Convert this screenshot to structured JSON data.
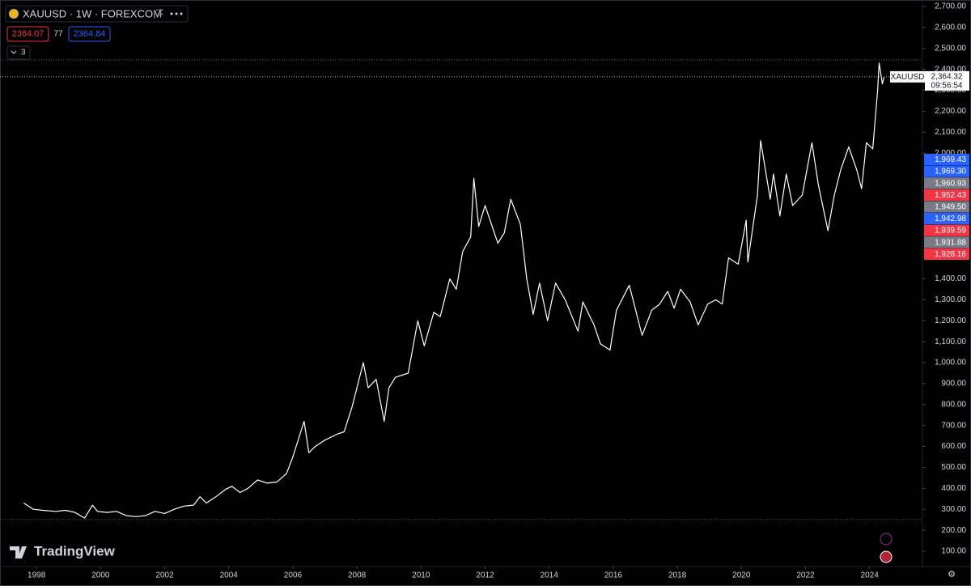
{
  "header": {
    "symbol_line": "XAUUSD · 1W · FOREXCOM",
    "bid": "2364.07",
    "spread": "77",
    "ask": "2364.84",
    "indicators": "3"
  },
  "brand": "TradingView",
  "countdown": "09:56:54",
  "price_tags": [
    {
      "label": "1,969.43",
      "color": "#2962ff"
    },
    {
      "label": "1,969.30",
      "color": "#2962ff"
    },
    {
      "label": "1,960.93",
      "color": "#787b86"
    },
    {
      "label": "1,952.43",
      "color": "#f23645"
    },
    {
      "label": "1,949.50",
      "color": "#787b86"
    },
    {
      "label": "1,942.98",
      "color": "#2962ff"
    },
    {
      "label": "1,939.59",
      "color": "#f23645"
    },
    {
      "label": "1,931.88",
      "color": "#787b86"
    },
    {
      "label": "1,928.16",
      "color": "#f23645"
    }
  ],
  "chart_data": {
    "type": "line",
    "grid": false,
    "xlim": [
      1996.86,
      2025.65
    ],
    "xticks": [
      1998,
      2000,
      2002,
      2004,
      2006,
      2008,
      2010,
      2012,
      2014,
      2016,
      2018,
      2020,
      2022,
      2024
    ],
    "ylim": [
      100,
      2700
    ],
    "yticks": [
      {
        "value": 100,
        "label": "100.00"
      },
      {
        "value": 200,
        "label": "200.00"
      },
      {
        "value": 300,
        "label": "300.00"
      },
      {
        "value": 400,
        "label": "400.00"
      },
      {
        "value": 500,
        "label": "500.00"
      },
      {
        "value": 600,
        "label": "600.00"
      },
      {
        "value": 700,
        "label": "700.00"
      },
      {
        "value": 800,
        "label": "800.00"
      },
      {
        "value": 900,
        "label": "900.00"
      },
      {
        "value": 1000,
        "label": "1,000.00"
      },
      {
        "value": 1100,
        "label": "1,100.00"
      },
      {
        "value": 1200,
        "label": "1,200.00"
      },
      {
        "value": 1300,
        "label": "1,300.00"
      },
      {
        "value": 1400,
        "label": "1,400.00"
      },
      {
        "value": 2000,
        "label": "2,000.00"
      },
      {
        "value": 2100,
        "label": "2,100.00"
      },
      {
        "value": 2200,
        "label": "2,200.00"
      },
      {
        "value": 2300,
        "label": "2,300.00"
      },
      {
        "value": 2400,
        "label": "2,400.00"
      },
      {
        "value": 2500,
        "label": "2,500.00"
      },
      {
        "value": 2600,
        "label": "2,600.00"
      },
      {
        "value": 2700,
        "label": "2,700.00"
      }
    ],
    "reference_lines": [
      2445,
      251
    ],
    "price_label": {
      "value": 2364.32,
      "label": "2,364.32"
    },
    "series": [
      {
        "name": "XAUUSD",
        "color": "#ffffff",
        "x": [
          1997.6,
          1997.9,
          1998.2,
          1998.6,
          1998.9,
          1999.2,
          1999.5,
          1999.75,
          1999.9,
          2000.2,
          2000.5,
          2000.8,
          2001.1,
          2001.4,
          2001.7,
          2002.0,
          2002.3,
          2002.6,
          2002.9,
          2003.1,
          2003.3,
          2003.6,
          2003.9,
          2004.1,
          2004.35,
          2004.6,
          2004.9,
          2005.2,
          2005.5,
          2005.8,
          2006.0,
          2006.35,
          2006.5,
          2006.7,
          2007.0,
          2007.4,
          2007.6,
          2007.85,
          2008.2,
          2008.35,
          2008.6,
          2008.85,
          2009.0,
          2009.2,
          2009.6,
          2009.9,
          2010.1,
          2010.4,
          2010.6,
          2010.9,
          2011.1,
          2011.3,
          2011.55,
          2011.65,
          2011.8,
          2012.0,
          2012.4,
          2012.6,
          2012.8,
          2013.1,
          2013.3,
          2013.5,
          2013.7,
          2013.95,
          2014.2,
          2014.5,
          2014.9,
          2015.05,
          2015.4,
          2015.6,
          2015.9,
          2016.1,
          2016.5,
          2016.9,
          2017.2,
          2017.45,
          2017.7,
          2017.9,
          2018.1,
          2018.4,
          2018.65,
          2018.95,
          2019.2,
          2019.4,
          2019.6,
          2019.9,
          2020.15,
          2020.2,
          2020.5,
          2020.6,
          2020.9,
          2021.0,
          2021.2,
          2021.4,
          2021.6,
          2021.9,
          2022.2,
          2022.4,
          2022.7,
          2022.9,
          2023.1,
          2023.35,
          2023.6,
          2023.75,
          2023.9,
          2024.1,
          2024.25,
          2024.3,
          2024.4,
          2024.45
        ],
        "values": [
          330,
          300,
          295,
          290,
          295,
          285,
          258,
          320,
          290,
          285,
          290,
          270,
          265,
          270,
          290,
          280,
          300,
          315,
          320,
          360,
          330,
          360,
          395,
          410,
          380,
          400,
          440,
          425,
          430,
          470,
          550,
          720,
          570,
          600,
          630,
          660,
          670,
          790,
          1000,
          880,
          920,
          720,
          880,
          930,
          950,
          1200,
          1080,
          1240,
          1220,
          1400,
          1350,
          1530,
          1600,
          1880,
          1650,
          1750,
          1570,
          1620,
          1780,
          1660,
          1400,
          1230,
          1380,
          1200,
          1380,
          1300,
          1150,
          1290,
          1180,
          1090,
          1060,
          1250,
          1370,
          1130,
          1250,
          1280,
          1340,
          1260,
          1350,
          1290,
          1180,
          1280,
          1300,
          1280,
          1500,
          1470,
          1680,
          1480,
          1800,
          2060,
          1780,
          1900,
          1700,
          1900,
          1750,
          1800,
          2050,
          1850,
          1630,
          1800,
          1920,
          2030,
          1920,
          1830,
          2050,
          2020,
          2300,
          2430,
          2330,
          2364
        ]
      }
    ]
  }
}
